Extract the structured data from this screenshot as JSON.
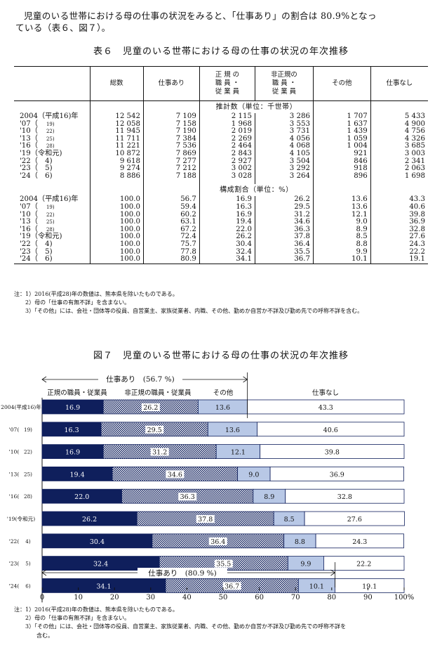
{
  "intro": {
    "line1": "児童のいる世帯における母の仕事の状況をみると、「仕事あり」の割合は 80.9%となっ",
    "line2": "ている（表６、図７）。"
  },
  "table": {
    "title": "表６　児童のいる世帯における母の仕事の状況の年次推移",
    "headers": {
      "total": "総数",
      "employed": "仕事あり",
      "regular": [
        "正 規 の",
        "職 員 ・",
        "従 業 員"
      ],
      "nonregular": [
        "非正規の",
        "職 員 ・",
        "従 業 員"
      ],
      "other": "その他",
      "unemployed": "仕事なし"
    },
    "section1": "推計数（単位：千世帯）",
    "section2": "構成割合（単位：%）",
    "years": [
      {
        "main": "2004（平成16)年",
        "sub": ""
      },
      {
        "main": "'07（",
        "sub": "19)"
      },
      {
        "main": "'10（",
        "sub": "22)"
      },
      {
        "main": "'13（",
        "sub": "25)"
      },
      {
        "main": "'16（",
        "sub": "28)"
      },
      {
        "main": "'19（令和元)",
        "sub": ""
      },
      {
        "main": "'22（　4)",
        "sub": ""
      },
      {
        "main": "'23（　5)",
        "sub": ""
      },
      {
        "main": "'24（　6)",
        "sub": ""
      }
    ],
    "counts": [
      [
        "12 542",
        "7 109",
        "2 115",
        "3 286",
        "1 707",
        "5 433"
      ],
      [
        "12 058",
        "7 158",
        "1 968",
        "3 553",
        "1 637",
        "4 900"
      ],
      [
        "11 945",
        "7 190",
        "2 019",
        "3 731",
        "1 439",
        "4 756"
      ],
      [
        "11 711",
        "7 384",
        "2 269",
        "4 056",
        "1 059",
        "4 326"
      ],
      [
        "11 221",
        "7 536",
        "2 464",
        "4 068",
        "1 004",
        "3 685"
      ],
      [
        "10 872",
        "7 869",
        "2 843",
        "4 105",
        "921",
        "3 003"
      ],
      [
        "9 618",
        "7 277",
        "2 927",
        "3 504",
        "846",
        "2 341"
      ],
      [
        "9 274",
        "7 212",
        "3 002",
        "3 292",
        "918",
        "2 063"
      ],
      [
        "8 886",
        "7 188",
        "3 028",
        "3 264",
        "896",
        "1 698"
      ]
    ],
    "shares": [
      [
        "100.0",
        "56.7",
        "16.9",
        "26.2",
        "13.6",
        "43.3"
      ],
      [
        "100.0",
        "59.4",
        "16.3",
        "29.5",
        "13.6",
        "40.6"
      ],
      [
        "100.0",
        "60.2",
        "16.9",
        "31.2",
        "12.1",
        "39.8"
      ],
      [
        "100.0",
        "63.1",
        "19.4",
        "34.6",
        "9.0",
        "36.9"
      ],
      [
        "100.0",
        "67.2",
        "22.0",
        "36.3",
        "8.9",
        "32.8"
      ],
      [
        "100.0",
        "72.4",
        "26.2",
        "37.8",
        "8.5",
        "27.6"
      ],
      [
        "100.0",
        "75.7",
        "30.4",
        "36.4",
        "8.8",
        "24.3"
      ],
      [
        "100.0",
        "77.8",
        "32.4",
        "35.5",
        "9.9",
        "22.2"
      ],
      [
        "100.0",
        "80.9",
        "34.1",
        "36.7",
        "10.1",
        "19.1"
      ]
    ],
    "notes": [
      "注：1）2016(平成28)年の数値は、熊本県を除いたものである。",
      "　　2）母の「仕事の有無不詳」を含まない。",
      "　　3）「その他」には、会社・団体等の役員、自営業主、家族従業者、内職、その他、勤めか自営か不詳及び勤め先での呼称不詳を含む。"
    ]
  },
  "figure": {
    "title": "図７　児童のいる世帯における母の仕事の状況の年次推移",
    "top_bracket": "仕事あり　(56.7 %)",
    "bottom_bracket": "仕事あり　(80.9 %)",
    "legend": {
      "regular": "正規の職員・従業員",
      "nonregular": "非正規の職員・従業員",
      "other": "その他",
      "unemployed": "仕事なし"
    },
    "notes": [
      "注：1）2016(平成28)年の数値は、熊本県を除いたものである。",
      "　　2）母の「仕事の有無不詳」を含まない。",
      "　　3）「その他」には、会社・団体等の役員、自営業主、家族従業者、内職、その他、勤めか自営か不詳及び勤め先での呼称不詳を",
      "　　　　含む。"
    ]
  },
  "chart_data": {
    "type": "bar",
    "orientation": "horizontal-stacked-100",
    "title": "図７　児童のいる世帯における母の仕事の状況の年次推移",
    "categories": [
      {
        "main": "2004(平成16)年",
        "sub": ""
      },
      {
        "main": "'07(",
        "sub": "19)"
      },
      {
        "main": "'10(",
        "sub": "22)"
      },
      {
        "main": "'13(",
        "sub": "25)"
      },
      {
        "main": "'16(",
        "sub": "28)"
      },
      {
        "main": "'19(令和元)",
        "sub": ""
      },
      {
        "main": "'22(",
        "sub": "4)"
      },
      {
        "main": "'23(",
        "sub": "5)"
      },
      {
        "main": "'24(",
        "sub": "6)"
      }
    ],
    "series": [
      {
        "name": "正規の職員・従業員",
        "values": [
          16.9,
          16.3,
          16.9,
          19.4,
          22.0,
          26.2,
          30.4,
          32.4,
          34.1
        ],
        "color": "#0f1f5c",
        "fill": "solid"
      },
      {
        "name": "非正規の職員・従業員",
        "values": [
          26.2,
          29.5,
          31.2,
          34.6,
          36.3,
          37.8,
          36.4,
          35.5,
          36.7
        ],
        "color": "#0f1f5c",
        "fill": "checker"
      },
      {
        "name": "その他",
        "values": [
          13.6,
          13.6,
          12.1,
          9.0,
          8.9,
          8.5,
          8.8,
          9.9,
          10.1
        ],
        "color": "#b8c8e6",
        "fill": "solid"
      },
      {
        "name": "仕事なし",
        "values": [
          43.3,
          40.6,
          39.8,
          36.9,
          32.8,
          27.6,
          24.3,
          22.2,
          19.1
        ],
        "color": "#ffffff",
        "fill": "solid"
      }
    ],
    "xlim": [
      0,
      100
    ],
    "xticks": [
      "0",
      "10",
      "20",
      "30",
      "40",
      "50",
      "60",
      "70",
      "80",
      "90",
      "100%"
    ],
    "grid": false,
    "legend": "top"
  }
}
